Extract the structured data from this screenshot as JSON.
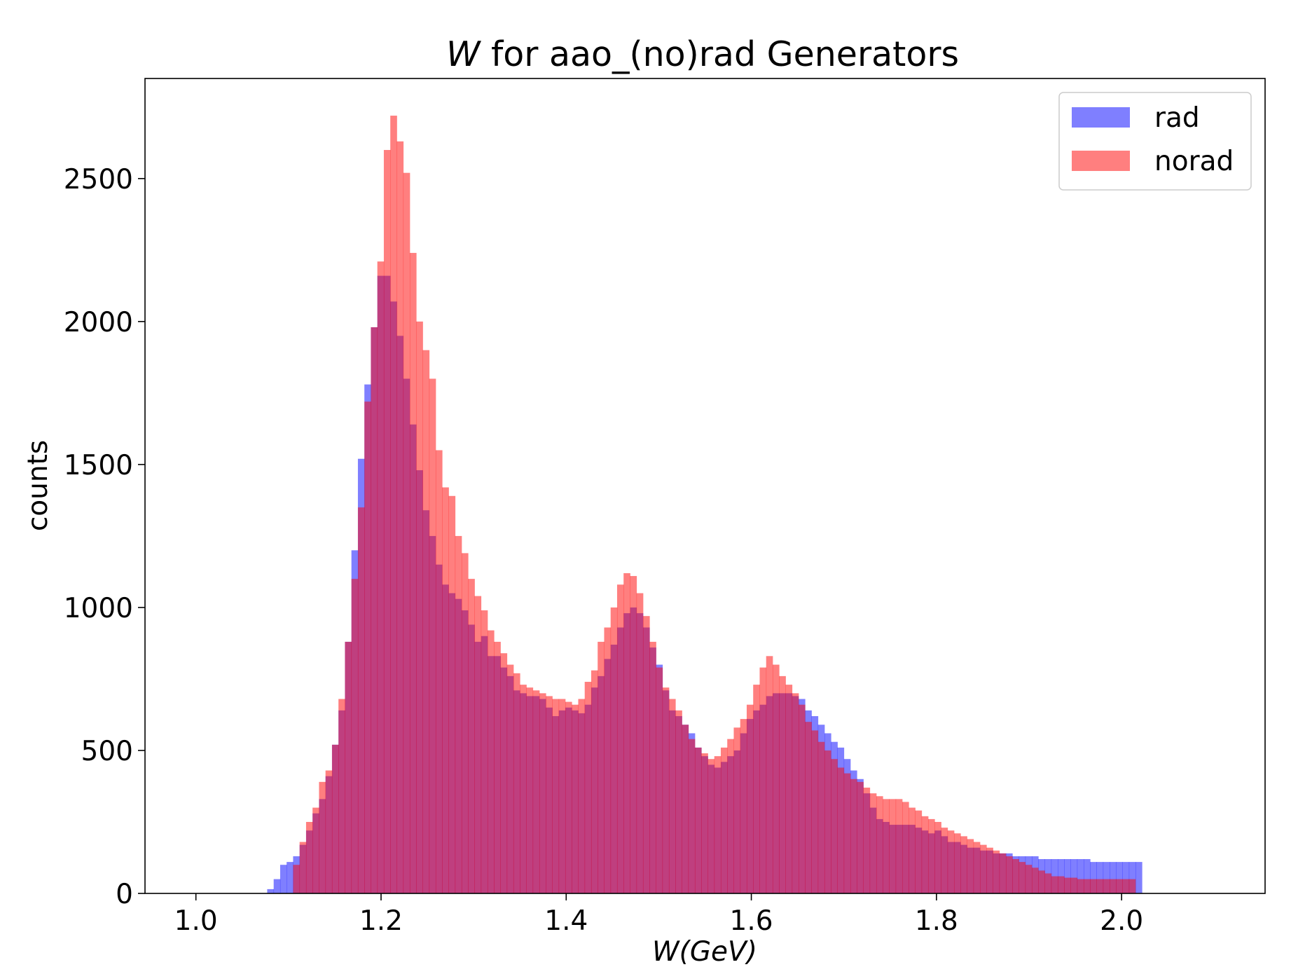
{
  "chart_data": {
    "type": "histogram",
    "title_prefix": "W",
    "title_rest": " for aao_(no)rad Generators",
    "xlabel": "W(GeV)",
    "ylabel": "counts",
    "xlim": [
      0.945,
      2.155
    ],
    "ylim": [
      0,
      2850
    ],
    "x_ticks": [
      1.0,
      1.2,
      1.4,
      1.6,
      1.8,
      2.0
    ],
    "x_tick_labels": [
      "1.0",
      "1.2",
      "1.4",
      "1.6",
      "1.8",
      "2.0"
    ],
    "y_ticks": [
      0,
      500,
      1000,
      1500,
      2000,
      2500
    ],
    "y_tick_labels": [
      "0",
      "500",
      "1000",
      "1500",
      "2000",
      "2500"
    ],
    "grid": false,
    "legend_position": "top-right",
    "bins": {
      "start": 1.0,
      "end": 2.1,
      "width": 0.007
    },
    "series": [
      {
        "name": "rad",
        "color": "#0000ff",
        "alpha": 0.5,
        "values": [
          0,
          0,
          0,
          0,
          0,
          0,
          0,
          0,
          0,
          0,
          0,
          15,
          50,
          100,
          110,
          130,
          170,
          220,
          280,
          330,
          410,
          520,
          640,
          880,
          1200,
          1520,
          1780,
          1980,
          2160,
          2160,
          2070,
          1950,
          1800,
          1640,
          1480,
          1340,
          1250,
          1150,
          1080,
          1050,
          1030,
          990,
          940,
          880,
          900,
          830,
          830,
          790,
          760,
          710,
          700,
          690,
          690,
          680,
          650,
          620,
          640,
          650,
          640,
          630,
          660,
          720,
          760,
          820,
          870,
          930,
          980,
          1000,
          980,
          930,
          860,
          800,
          710,
          640,
          620,
          590,
          560,
          510,
          480,
          450,
          440,
          460,
          480,
          500,
          560,
          610,
          640,
          660,
          690,
          700,
          700,
          700,
          690,
          680,
          640,
          620,
          590,
          560,
          530,
          510,
          470,
          430,
          400,
          350,
          300,
          260,
          250,
          240,
          240,
          240,
          240,
          230,
          220,
          210,
          220,
          200,
          180,
          180,
          170,
          160,
          160,
          150,
          150,
          140,
          140,
          140,
          130,
          130,
          130,
          130,
          120,
          120,
          120,
          120,
          120,
          120,
          120,
          120,
          110,
          110,
          110,
          110,
          110,
          110,
          110,
          110
        ]
      },
      {
        "name": "norad",
        "color": "#ff0000",
        "alpha": 0.5,
        "values": [
          0,
          0,
          0,
          0,
          0,
          0,
          0,
          0,
          0,
          0,
          0,
          0,
          0,
          0,
          0,
          100,
          180,
          250,
          300,
          390,
          430,
          520,
          680,
          880,
          1100,
          1350,
          1720,
          1980,
          2210,
          2600,
          2720,
          2630,
          2520,
          2240,
          2000,
          1900,
          1800,
          1550,
          1420,
          1390,
          1250,
          1190,
          1100,
          1040,
          990,
          920,
          880,
          840,
          800,
          770,
          730,
          720,
          710,
          700,
          690,
          680,
          680,
          670,
          660,
          680,
          740,
          780,
          880,
          930,
          1000,
          1080,
          1120,
          1110,
          1050,
          970,
          880,
          790,
          720,
          680,
          640,
          590,
          540,
          510,
          490,
          470,
          480,
          510,
          540,
          580,
          610,
          660,
          730,
          790,
          830,
          800,
          760,
          730,
          700,
          660,
          600,
          570,
          530,
          500,
          470,
          440,
          420,
          400,
          390,
          370,
          350,
          340,
          330,
          330,
          330,
          320,
          300,
          290,
          270,
          260,
          250,
          230,
          220,
          210,
          200,
          190,
          180,
          170,
          160,
          150,
          140,
          130,
          120,
          110,
          100,
          90,
          80,
          70,
          60,
          60,
          55,
          55,
          50,
          50,
          50,
          50,
          50,
          50,
          50,
          50,
          50
        ]
      }
    ]
  }
}
